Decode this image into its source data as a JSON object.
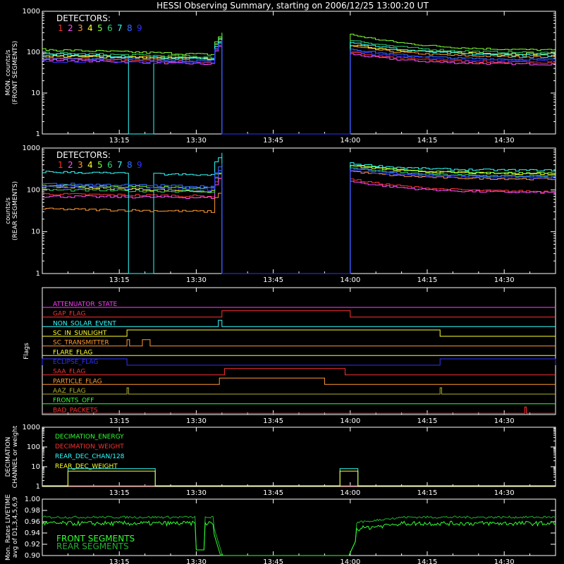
{
  "title": "HESSI Observing Summary, starting on 2006/12/25 13:00:20 UT",
  "time_ticks": [
    "13:15",
    "13:30",
    "13:45",
    "14:00",
    "14:15",
    "14:30"
  ],
  "time_tick_minutes": [
    15,
    30,
    45,
    60,
    75,
    90
  ],
  "x_range_minutes": [
    0,
    100
  ],
  "detector_colors": [
    "#ff3030",
    "#ff50ff",
    "#ff9930",
    "#ffff30",
    "#80ff30",
    "#30d070",
    "#30ffff",
    "#3070ff",
    "#3030ff"
  ],
  "chart_data": [
    {
      "type": "line",
      "ylabel_lines": [
        "MON. counts/s",
        "(FRONT SEGMENTS)"
      ],
      "legend_title": "DETECTORS:",
      "legend_entries": [
        "1",
        "2",
        "3",
        "4",
        "5",
        "6",
        "7",
        "8",
        "9"
      ],
      "yscale": "log",
      "ylim": [
        1,
        1000
      ],
      "ytick_labels": [
        "1",
        "10",
        "100",
        "1000"
      ],
      "ytick_values": [
        1,
        10,
        100,
        1000
      ],
      "gaps_minutes": [
        [
          35,
          60
        ]
      ],
      "dropouts": [
        {
          "detector": 7,
          "minutes": [
            [
              16.5,
              21
            ]
          ]
        }
      ],
      "series": [
        {
          "detector": 1,
          "pre": [
            70,
            55
          ],
          "post": [
            100,
            55
          ]
        },
        {
          "detector": 2,
          "pre": [
            65,
            50
          ],
          "post": [
            90,
            50
          ]
        },
        {
          "detector": 3,
          "pre": [
            85,
            65
          ],
          "post": [
            140,
            75
          ]
        },
        {
          "detector": 4,
          "pre": [
            80,
            70
          ],
          "post": [
            150,
            90
          ]
        },
        {
          "detector": 5,
          "pre": [
            115,
            85
          ],
          "post": [
            270,
            110
          ]
        },
        {
          "detector": 6,
          "pre": [
            95,
            75
          ],
          "post": [
            200,
            95
          ]
        },
        {
          "detector": 7,
          "pre": [
            90,
            65
          ],
          "post": [
            180,
            80
          ]
        },
        {
          "detector": 8,
          "pre": [
            75,
            60
          ],
          "post": [
            120,
            65
          ]
        },
        {
          "detector": 9,
          "pre": [
            60,
            55
          ],
          "post": [
            110,
            60
          ]
        }
      ]
    },
    {
      "type": "line",
      "ylabel_lines": [
        "counts/s",
        "(REAR SEGMENTS)"
      ],
      "legend_title": "DETECTORS:",
      "legend_entries": [
        "1",
        "2",
        "3",
        "4",
        "5",
        "6",
        "7",
        "8",
        "9"
      ],
      "yscale": "log",
      "ylim": [
        1,
        1000
      ],
      "ytick_labels": [
        "1",
        "10",
        "100",
        "1000"
      ],
      "ytick_values": [
        1,
        10,
        100,
        1000
      ],
      "gaps_minutes": [
        [
          35,
          60
        ]
      ],
      "dropouts": [
        {
          "detector": 7,
          "minutes": [
            [
              16.5,
              21
            ]
          ]
        }
      ],
      "series": [
        {
          "detector": 1,
          "pre": [
            80,
            70
          ],
          "post": [
            180,
            90
          ]
        },
        {
          "detector": 2,
          "pre": [
            70,
            65
          ],
          "post": [
            160,
            85
          ]
        },
        {
          "detector": 3,
          "pre": [
            35,
            30
          ],
          "post": [
            280,
            180
          ]
        },
        {
          "detector": 4,
          "pre": [
            120,
            90
          ],
          "post": [
            380,
            240
          ]
        },
        {
          "detector": 5,
          "pre": [
            130,
            110
          ],
          "post": [
            390,
            250
          ]
        },
        {
          "detector": 6,
          "pre": [
            100,
            90
          ],
          "post": [
            340,
            210
          ]
        },
        {
          "detector": 7,
          "pre": [
            270,
            220
          ],
          "post": [
            430,
            290
          ]
        },
        {
          "detector": 8,
          "pre": [
            140,
            120
          ],
          "post": [
            330,
            200
          ]
        },
        {
          "detector": 9,
          "pre": [
            120,
            100
          ],
          "post": [
            300,
            190
          ]
        }
      ]
    },
    {
      "type": "flags",
      "ylabel": "Flags",
      "flags": [
        {
          "label": "ATTENUATOR_STATE",
          "color": "#ff40ff",
          "high": []
        },
        {
          "label": "GAP_FLAG",
          "color": "#ff3030",
          "high": [
            [
              35,
              60
            ]
          ]
        },
        {
          "label": "NON_SOLAR_EVENT",
          "color": "#30ffff",
          "high": [
            [
              34.3,
              35
            ]
          ]
        },
        {
          "label": "SC_IN_SUNLIGHT",
          "color": "#ffff30",
          "high": [
            [
              16.5,
              77.5
            ]
          ]
        },
        {
          "label": "SC_TRANSMITTER",
          "color": "#ff9930",
          "high": [
            [
              16.5,
              17
            ],
            [
              19.5,
              21
            ]
          ]
        },
        {
          "label": "FLARE_FLAG",
          "color": "#ffff30",
          "high": []
        },
        {
          "label": "ECLIPSE_FLAG",
          "color": "#3030ff",
          "high": [
            [
              0,
              16.5
            ],
            [
              77.5,
              100
            ]
          ]
        },
        {
          "label": "SAA_FLAG",
          "color": "#ff3030",
          "high": [
            [
              35.5,
              59
            ]
          ]
        },
        {
          "label": "PARTICLE_FLAG",
          "color": "#ff9930",
          "high": [
            [
              34.5,
              55
            ]
          ]
        },
        {
          "label": "AAZ_FLAG",
          "color": "#b0b030",
          "high": [
            [
              16.5,
              16.8
            ],
            [
              77.5,
              77.8
            ]
          ]
        },
        {
          "label": "FRONTS_OFF",
          "color": "#30ff30",
          "high": []
        },
        {
          "label": "BAD_PACKETS",
          "color": "#ff3030",
          "high": [
            [
              94,
              94.3
            ]
          ]
        }
      ]
    },
    {
      "type": "line",
      "ylabel_lines": [
        "DECIMATION",
        "CHANNEL or weight"
      ],
      "yscale": "log",
      "ylim": [
        1,
        1000
      ],
      "ytick_labels": [
        "1",
        "10",
        "100",
        "1000"
      ],
      "ytick_values": [
        1,
        10,
        100,
        1000
      ],
      "legend_entries": [
        "DECIMATION_ENERGY",
        "DECIMATION_WEIGHT",
        "REAR_DEC_CHAN/128",
        "REAR_DEC_WEIGHT"
      ],
      "series_colors": [
        "#30ff30",
        "#ff3030",
        "#30ffff",
        "#ffff30"
      ],
      "rear_dec_intervals_minutes": [
        [
          5,
          22
        ],
        [
          58,
          61.5
        ]
      ],
      "rear_dec_chan_value": 8,
      "rear_dec_weight_value": 6
    },
    {
      "type": "line",
      "ylabel_lines": [
        "Mon. Rates LIVETIME",
        "avg of D1,3,4,5,6,9"
      ],
      "ylim": [
        0.9,
        1.0
      ],
      "ytick_labels": [
        "0.90",
        "0.92",
        "0.94",
        "0.96",
        "0.98",
        "1.00"
      ],
      "ytick_values": [
        0.9,
        0.92,
        0.94,
        0.96,
        0.98,
        1.0
      ],
      "legend_entries": [
        "FRONT SEGMENTS",
        "REAR SEGMENTS"
      ],
      "series_colors": [
        "#30ff30",
        "#20b030"
      ],
      "front_level": 0.957,
      "rear_level": 0.968,
      "dips_minutes": [
        [
          30,
          35
        ],
        [
          59,
          62
        ]
      ]
    }
  ]
}
